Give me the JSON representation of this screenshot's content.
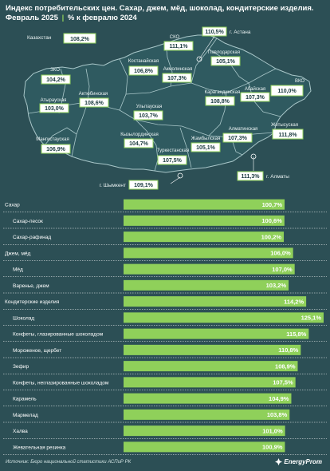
{
  "title_line1": "Индекс потребительских цен. Сахар, джем, мёд, шоколад, кондитерские изделия.",
  "title_line2a": "Февраль 2025",
  "title_sep": "|",
  "title_line2b": "% к февралю 2024",
  "map": {
    "country": {
      "name": "Казахстан",
      "value": "108,2%"
    },
    "regions": [
      {
        "name": "СКО",
        "value": "111,1%"
      },
      {
        "name": "Костанайская",
        "value": "106,8%"
      },
      {
        "name": "Акмолинская",
        "value": "107,3%"
      },
      {
        "name": "Павлодарская",
        "value": "105,1%"
      },
      {
        "name": "ЗКО",
        "value": "104,2%"
      },
      {
        "name": "Актюбинская",
        "value": "108,6%"
      },
      {
        "name": "Атырауская",
        "value": "103,0%"
      },
      {
        "name": "Карагандинская",
        "value": "108,8%"
      },
      {
        "name": "Абайская",
        "value": "107,3%"
      },
      {
        "name": "ВКО",
        "value": "110,0%"
      },
      {
        "name": "Улытауская",
        "value": "103,7%"
      },
      {
        "name": "Мангистауская",
        "value": "106,9%"
      },
      {
        "name": "Кызылординская",
        "value": "104,7%"
      },
      {
        "name": "Жетысуская",
        "value": "111,8%"
      },
      {
        "name": "Алматинская",
        "value": "107,3%"
      },
      {
        "name": "Жамбылская",
        "value": "105,1%"
      },
      {
        "name": "Туркестанская",
        "value": "107,5%"
      }
    ],
    "cities": [
      {
        "name": "г. Астана",
        "value": "110,5%"
      },
      {
        "name": "г. Алматы",
        "value": "111,3%"
      },
      {
        "name": "г. Шымкент",
        "value": "109,1%"
      }
    ]
  },
  "chart_data": {
    "type": "bar",
    "orientation": "horizontal",
    "title": "Индекс потребительских цен. Сахар, джем, мёд, шоколад, кондитерские изделия. Февраль 2025 | % к февралю 2024",
    "categories": [
      "Сахар",
      "Сахар-песок",
      "Сахар-рафинад",
      "Джем, мёд",
      "Мёд",
      "Варенье, джем",
      "Кондитерские изделия",
      "Шоколад",
      "Конфеты, глазированные шоколадом",
      "Мороженое, щербет",
      "Зефир",
      "Конфеты, неглазированные шоколадом",
      "Карамель",
      "Мармелад",
      "Халва",
      "Жевательная резинка"
    ],
    "values": [
      100.7,
      100.6,
      100.2,
      106.0,
      107.0,
      103.2,
      114.2,
      125.1,
      115.8,
      110.8,
      108.9,
      107.5,
      104.9,
      103.8,
      101.0,
      100.9
    ],
    "labels": [
      "100,7%",
      "100,6%",
      "100,2%",
      "106,0%",
      "107,0%",
      "103,2%",
      "114,2%",
      "125,1%",
      "115,8%",
      "110,8%",
      "108,9%",
      "107,5%",
      "104,9%",
      "103,8%",
      "101,0%",
      "100,9%"
    ],
    "row_kinds": [
      "group",
      "item",
      "item",
      "group",
      "item",
      "item",
      "group",
      "item",
      "item",
      "item",
      "item",
      "item",
      "item",
      "item",
      "item",
      "item"
    ],
    "xlim": [
      0,
      125.1
    ],
    "bar_color": "#8fd05a"
  },
  "footer": {
    "source": "Источник: Бюро национальной статистики АСПиР РК",
    "brand": "EnergyProm"
  },
  "colors": {
    "background": "#2c4f55",
    "map_fill": "#2f5a60",
    "region_border": "#a9c7c9",
    "accent": "#8fd05a"
  }
}
